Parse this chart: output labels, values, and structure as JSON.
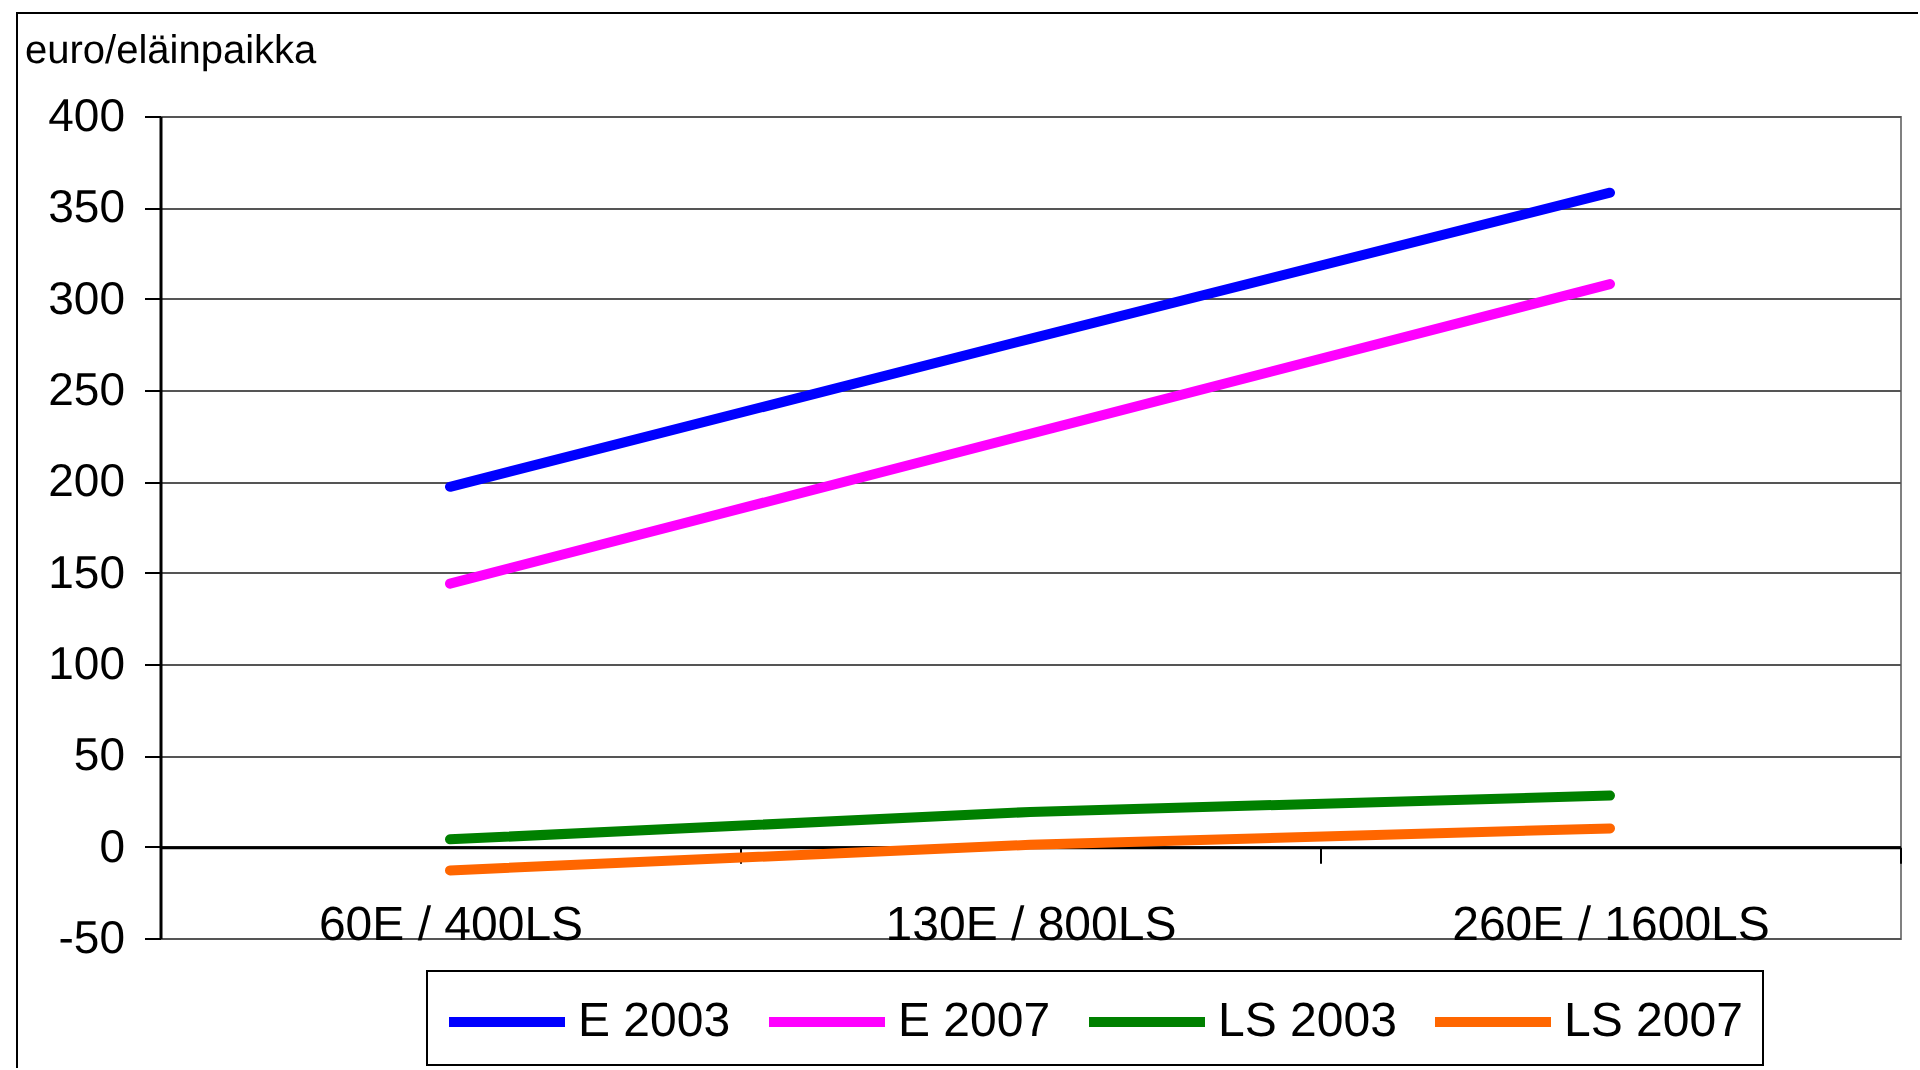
{
  "chart_data": {
    "type": "line",
    "ylabel": "euro/eläinpaikka",
    "categories": [
      "60E / 400LS",
      "130E / 800LS",
      "260E / 1600LS"
    ],
    "series": [
      {
        "name": "E 2003",
        "color": "#0000ff",
        "values": [
          197,
          278,
          358
        ]
      },
      {
        "name": "E 2007",
        "color": "#ff00ff",
        "values": [
          144,
          226,
          308
        ]
      },
      {
        "name": "LS 2003",
        "color": "#008000",
        "values": [
          4,
          19,
          28
        ]
      },
      {
        "name": "LS 2007",
        "color": "#ff6600",
        "values": [
          -13,
          1,
          10
        ]
      }
    ],
    "ylim": [
      -50,
      400
    ],
    "yticks": [
      -50,
      0,
      50,
      100,
      150,
      200,
      250,
      300,
      350,
      400
    ],
    "grid": "y",
    "legend": "bottom",
    "marker": "none",
    "line_style": "solid"
  }
}
